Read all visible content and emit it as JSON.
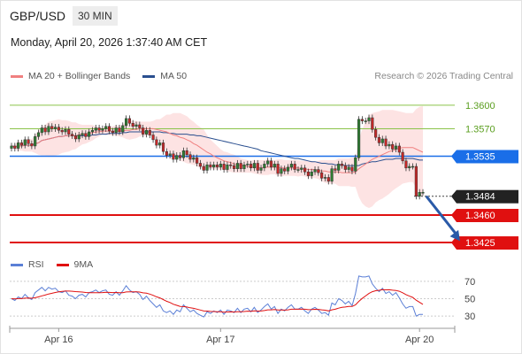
{
  "header": {
    "symbol": "GBP/USD",
    "timeframe": "30 MIN"
  },
  "datetime": "Monday, April 20, 2026 1:37:40 AM CET",
  "legend": {
    "ma20_label": "MA 20 + Bollinger Bands",
    "ma20_color": "#f08080",
    "ma50_label": "MA 50",
    "ma50_color": "#2a4f8f"
  },
  "credit": "Research © 2026 Trading Central",
  "rsi_legend": {
    "rsi_label": "RSI",
    "rsi_color": "#5b7fd6",
    "ma9_label": "9MA",
    "ma9_color": "#e01010"
  },
  "chart_data": {
    "type": "line",
    "price_axis": {
      "ylim": [
        1.3407,
        1.3628
      ]
    },
    "rsi_axis": {
      "ylim": [
        20,
        80
      ],
      "ticks": [
        "70",
        "50",
        "30"
      ]
    },
    "x_ticks": [
      {
        "label": "Apr 16",
        "index": 14
      },
      {
        "label": "Apr 17",
        "index": 62
      },
      {
        "label": "Apr 20",
        "index": 121
      }
    ],
    "levels": [
      {
        "label": "1.3600",
        "value": 1.36,
        "kind": "resistance",
        "color": "#8bc34a"
      },
      {
        "label": "1.3570",
        "value": 1.357,
        "kind": "resistance",
        "color": "#8bc34a"
      },
      {
        "label": "1.3535",
        "value": 1.3535,
        "kind": "pivot",
        "color": "#1a6ee8"
      },
      {
        "label": "1.3484",
        "value": 1.3484,
        "kind": "last",
        "color": "#222222"
      },
      {
        "label": "1.3460",
        "value": 1.346,
        "kind": "support",
        "color": "#e01010"
      },
      {
        "label": "1.3425",
        "value": 1.3425,
        "kind": "support",
        "color": "#e01010"
      }
    ],
    "arrow": {
      "from": {
        "index": 123,
        "value": 1.3484
      },
      "to": {
        "index": 133,
        "value": 1.3427
      }
    },
    "close": [
      1.3548,
      1.3545,
      1.3552,
      1.3549,
      1.3556,
      1.3551,
      1.3548,
      1.356,
      1.3565,
      1.3571,
      1.3566,
      1.3573,
      1.357,
      1.3572,
      1.3568,
      1.3566,
      1.3569,
      1.3563,
      1.3561,
      1.3557,
      1.3562,
      1.3564,
      1.356,
      1.3566,
      1.3568,
      1.3571,
      1.3568,
      1.357,
      1.3573,
      1.3567,
      1.3565,
      1.3571,
      1.3566,
      1.3574,
      1.3583,
      1.3577,
      1.3573,
      1.3575,
      1.3571,
      1.3563,
      1.3568,
      1.3562,
      1.3556,
      1.3549,
      1.3552,
      1.3541,
      1.3536,
      1.3538,
      1.3531,
      1.3536,
      1.3533,
      1.3542,
      1.3537,
      1.3531,
      1.3533,
      1.3526,
      1.3522,
      1.3517,
      1.3524,
      1.3521,
      1.3524,
      1.3521,
      1.3525,
      1.3518,
      1.3524,
      1.3523,
      1.3519,
      1.3526,
      1.3519,
      1.3524,
      1.3525,
      1.352,
      1.3526,
      1.3517,
      1.352,
      1.3525,
      1.3529,
      1.3521,
      1.3525,
      1.3513,
      1.3519,
      1.3516,
      1.3521,
      1.3525,
      1.3518,
      1.3518,
      1.352,
      1.3515,
      1.351,
      1.3515,
      1.3518,
      1.3514,
      1.3507,
      1.3508,
      1.3503,
      1.3519,
      1.3517,
      1.3525,
      1.3523,
      1.3518,
      1.3521,
      1.3516,
      1.3533,
      1.3582,
      1.358,
      1.358,
      1.3584,
      1.3569,
      1.3559,
      1.3552,
      1.3557,
      1.3548,
      1.355,
      1.3544,
      1.3548,
      1.354,
      1.3529,
      1.352,
      1.3522,
      1.3522,
      1.3484,
      1.3489,
      1.3489
    ],
    "ma20": [
      1.3548,
      1.3547,
      1.3548,
      1.3548,
      1.3549,
      1.3549,
      1.3549,
      1.3551,
      1.3552,
      1.3555,
      1.3556,
      1.3557,
      1.3558,
      1.3559,
      1.356,
      1.356,
      1.3561,
      1.3561,
      1.3561,
      1.3561,
      1.3562,
      1.3563,
      1.3563,
      1.3564,
      1.3565,
      1.3566,
      1.3566,
      1.3567,
      1.3567,
      1.3567,
      1.3567,
      1.3567,
      1.3567,
      1.3567,
      1.3568,
      1.3568,
      1.3569,
      1.3569,
      1.357,
      1.357,
      1.357,
      1.357,
      1.357,
      1.3569,
      1.3568,
      1.3567,
      1.3566,
      1.3564,
      1.3562,
      1.3561,
      1.3559,
      1.3558,
      1.3556,
      1.3554,
      1.3551,
      1.3549,
      1.3546,
      1.3543,
      1.354,
      1.3538,
      1.3535,
      1.3533,
      1.3531,
      1.3529,
      1.3528,
      1.3527,
      1.3525,
      1.3524,
      1.3523,
      1.3523,
      1.3522,
      1.3521,
      1.3521,
      1.3521,
      1.352,
      1.3521,
      1.3521,
      1.3521,
      1.3521,
      1.3521,
      1.352,
      1.352,
      1.352,
      1.352,
      1.352,
      1.352,
      1.3519,
      1.3519,
      1.3518,
      1.3518,
      1.3518,
      1.3517,
      1.3516,
      1.3516,
      1.3515,
      1.3515,
      1.3515,
      1.3515,
      1.3514,
      1.3514,
      1.3514,
      1.3514,
      1.3515,
      1.3519,
      1.3522,
      1.3525,
      1.3528,
      1.3531,
      1.3533,
      1.3535,
      1.3537,
      1.3539,
      1.3541,
      1.3542,
      1.3544,
      1.3545,
      1.3546,
      1.3546,
      1.3546,
      1.3546,
      1.3544,
      1.3542,
      1.354
    ],
    "upper": [
      1.3548,
      1.355,
      1.3554,
      1.3553,
      1.3557,
      1.3557,
      1.3557,
      1.3562,
      1.3567,
      1.3573,
      1.3575,
      1.3579,
      1.358,
      1.3581,
      1.3582,
      1.3581,
      1.3581,
      1.358,
      1.3578,
      1.3578,
      1.3576,
      1.3575,
      1.3575,
      1.3575,
      1.3575,
      1.3573,
      1.3572,
      1.3571,
      1.3573,
      1.3573,
      1.3573,
      1.3574,
      1.3574,
      1.3575,
      1.3579,
      1.358,
      1.358,
      1.358,
      1.3579,
      1.3579,
      1.3579,
      1.3579,
      1.358,
      1.3582,
      1.3582,
      1.3585,
      1.3588,
      1.3588,
      1.359,
      1.359,
      1.359,
      1.3588,
      1.3586,
      1.3582,
      1.3579,
      1.3575,
      1.3572,
      1.3569,
      1.3562,
      1.3556,
      1.3552,
      1.3548,
      1.3544,
      1.3541,
      1.354,
      1.3538,
      1.3537,
      1.3535,
      1.3532,
      1.3531,
      1.353,
      1.3529,
      1.353,
      1.353,
      1.353,
      1.353,
      1.3531,
      1.353,
      1.353,
      1.3531,
      1.3531,
      1.353,
      1.353,
      1.353,
      1.353,
      1.353,
      1.3529,
      1.3529,
      1.3529,
      1.3529,
      1.3528,
      1.3529,
      1.353,
      1.353,
      1.353,
      1.353,
      1.353,
      1.3532,
      1.3532,
      1.3532,
      1.3532,
      1.3533,
      1.3534,
      1.3556,
      1.3569,
      1.3579,
      1.3587,
      1.359,
      1.3591,
      1.3592,
      1.3594,
      1.3594,
      1.3594,
      1.3594,
      1.3593,
      1.3592,
      1.3591,
      1.359,
      1.359,
      1.359,
      1.3595,
      1.3598,
      1.3599
    ],
    "lower": [
      1.3548,
      1.3543,
      1.3542,
      1.3542,
      1.3541,
      1.3541,
      1.3541,
      1.3539,
      1.3537,
      1.3536,
      1.3536,
      1.3534,
      1.3535,
      1.3536,
      1.3537,
      1.3539,
      1.354,
      1.3541,
      1.3543,
      1.3544,
      1.3547,
      1.355,
      1.3551,
      1.3553,
      1.3555,
      1.3558,
      1.356,
      1.3563,
      1.3562,
      1.3562,
      1.3561,
      1.3561,
      1.356,
      1.3559,
      1.3557,
      1.3556,
      1.3557,
      1.3558,
      1.356,
      1.356,
      1.3561,
      1.3561,
      1.3559,
      1.3555,
      1.3555,
      1.3549,
      1.3543,
      1.354,
      1.3535,
      1.3532,
      1.3529,
      1.3528,
      1.3526,
      1.3525,
      1.3524,
      1.3522,
      1.352,
      1.3517,
      1.3518,
      1.3519,
      1.3518,
      1.3518,
      1.3518,
      1.3517,
      1.3516,
      1.3515,
      1.3514,
      1.3514,
      1.3514,
      1.3514,
      1.3514,
      1.3514,
      1.3513,
      1.3512,
      1.3511,
      1.3511,
      1.3511,
      1.3512,
      1.3512,
      1.351,
      1.3509,
      1.351,
      1.351,
      1.351,
      1.351,
      1.3509,
      1.351,
      1.3509,
      1.3508,
      1.3507,
      1.3507,
      1.3506,
      1.3503,
      1.3501,
      1.35,
      1.35,
      1.35,
      1.3497,
      1.3497,
      1.3497,
      1.3497,
      1.3496,
      1.3496,
      1.3483,
      1.3475,
      1.3471,
      1.3469,
      1.3471,
      1.3476,
      1.3479,
      1.3481,
      1.3484,
      1.3487,
      1.3491,
      1.3494,
      1.3497,
      1.35,
      1.3501,
      1.3502,
      1.3502,
      1.3494,
      1.3487,
      1.3482
    ],
    "ma50": [
      1.3548,
      1.3547,
      1.3548,
      1.3548,
      1.3549,
      1.3549,
      1.3549,
      1.3551,
      1.3552,
      1.3555,
      1.3556,
      1.3557,
      1.3558,
      1.3559,
      1.356,
      1.356,
      1.3561,
      1.3561,
      1.3561,
      1.3561,
      1.3561,
      1.3561,
      1.3561,
      1.3561,
      1.3562,
      1.3562,
      1.3563,
      1.3563,
      1.3563,
      1.3564,
      1.3564,
      1.3564,
      1.3564,
      1.3565,
      1.3565,
      1.3566,
      1.3566,
      1.3566,
      1.3566,
      1.3566,
      1.3566,
      1.3566,
      1.3566,
      1.3566,
      1.3566,
      1.3565,
      1.3565,
      1.3564,
      1.3564,
      1.3563,
      1.3563,
      1.3563,
      1.3563,
      1.3562,
      1.3562,
      1.3561,
      1.3561,
      1.356,
      1.3559,
      1.3558,
      1.3557,
      1.3556,
      1.3555,
      1.3554,
      1.3553,
      1.3552,
      1.3551,
      1.355,
      1.3549,
      1.3548,
      1.3547,
      1.3546,
      1.3545,
      1.3544,
      1.3542,
      1.3541,
      1.354,
      1.3539,
      1.3538,
      1.3537,
      1.3536,
      1.3535,
      1.3534,
      1.3533,
      1.3532,
      1.3532,
      1.3531,
      1.353,
      1.3529,
      1.3528,
      1.3528,
      1.3527,
      1.3526,
      1.3526,
      1.3525,
      1.3525,
      1.3524,
      1.3524,
      1.3524,
      1.3523,
      1.3523,
      1.3523,
      1.3523,
      1.3523,
      1.3525,
      1.3526,
      1.3527,
      1.3528,
      1.3528,
      1.3529,
      1.353,
      1.3531,
      1.3531,
      1.3531,
      1.3532,
      1.3532,
      1.3532,
      1.3532,
      1.3532,
      1.3532,
      1.3531,
      1.353,
      1.353
    ],
    "rsi": [
      50.0,
      48.0,
      52.0,
      50.0,
      55.0,
      51.0,
      49.0,
      57.0,
      60.0,
      63.0,
      59.0,
      63.0,
      61.0,
      62.0,
      58.0,
      57.0,
      59.0,
      54.0,
      53.0,
      50.0,
      54.0,
      55.0,
      52.0,
      57.0,
      58.0,
      60.0,
      57.0,
      59.0,
      60.0,
      55.0,
      54.0,
      58.0,
      54.0,
      59.0,
      65.0,
      60.0,
      57.0,
      58.0,
      55.0,
      49.0,
      53.0,
      48.0,
      44.0,
      40.0,
      43.0,
      36.0,
      34.0,
      36.0,
      32.0,
      37.0,
      35.0,
      43.0,
      39.0,
      35.0,
      37.0,
      33.0,
      31.0,
      29.0,
      35.0,
      33.0,
      36.0,
      34.0,
      37.0,
      32.0,
      37.0,
      36.0,
      34.0,
      39.0,
      34.0,
      38.0,
      39.0,
      35.0,
      40.0,
      34.0,
      37.0,
      41.0,
      44.0,
      38.0,
      41.0,
      33.0,
      38.0,
      36.0,
      40.0,
      43.0,
      38.0,
      38.0,
      40.0,
      36.0,
      33.0,
      38.0,
      40.0,
      37.0,
      33.0,
      34.0,
      31.0,
      45.0,
      43.0,
      50.0,
      48.0,
      44.0,
      47.0,
      42.0,
      56.0,
      76.0,
      75.0,
      75.0,
      76.0,
      67.0,
      62.0,
      58.0,
      62.0,
      56.0,
      58.0,
      54.0,
      57.0,
      51.0,
      44.0,
      39.0,
      41.0,
      41.0,
      30.0,
      32.0,
      32.0
    ],
    "rsi_ma9": [
      50.0,
      49.8,
      50.1,
      50.1,
      50.6,
      50.7,
      50.5,
      51.1,
      52.0,
      53.3,
      54.2,
      55.4,
      56.2,
      57.1,
      57.8,
      58.3,
      58.7,
      58.7,
      58.5,
      58.1,
      57.9,
      57.6,
      57.1,
      56.9,
      56.8,
      56.9,
      56.9,
      57.0,
      57.3,
      57.2,
      57.0,
      57.1,
      56.8,
      56.9,
      57.7,
      57.9,
      57.8,
      57.9,
      57.6,
      56.7,
      56.3,
      55.3,
      53.9,
      52.1,
      50.9,
      49.0,
      47.1,
      45.6,
      43.6,
      42.4,
      41.2,
      41.0,
      40.4,
      39.5,
      38.9,
      38.0,
      37.0,
      35.9,
      35.8,
      35.4,
      35.3,
      34.9,
      34.9,
      34.5,
      34.7,
      34.8,
      34.7,
      35.1,
      35.0,
      35.3,
      35.7,
      35.6,
      36.1,
      35.8,
      35.9,
      36.4,
      37.2,
      37.2,
      37.6,
      37.0,
      37.1,
      36.9,
      37.2,
      37.9,
      37.9,
      37.9,
      38.1,
      37.9,
      37.4,
      37.5,
      37.8,
      37.7,
      37.2,
      36.8,
      36.0,
      37.2,
      37.9,
      39.1,
      40.0,
      40.4,
      41.1,
      41.1,
      42.9,
      46.9,
      50.3,
      53.2,
      56.0,
      58.0,
      59.2,
      59.7,
      60.4,
      60.2,
      60.3,
      59.8,
      59.5,
      58.5,
      56.8,
      54.7,
      53.0,
      51.4,
      48.3,
      45.8,
      43.5
    ]
  }
}
